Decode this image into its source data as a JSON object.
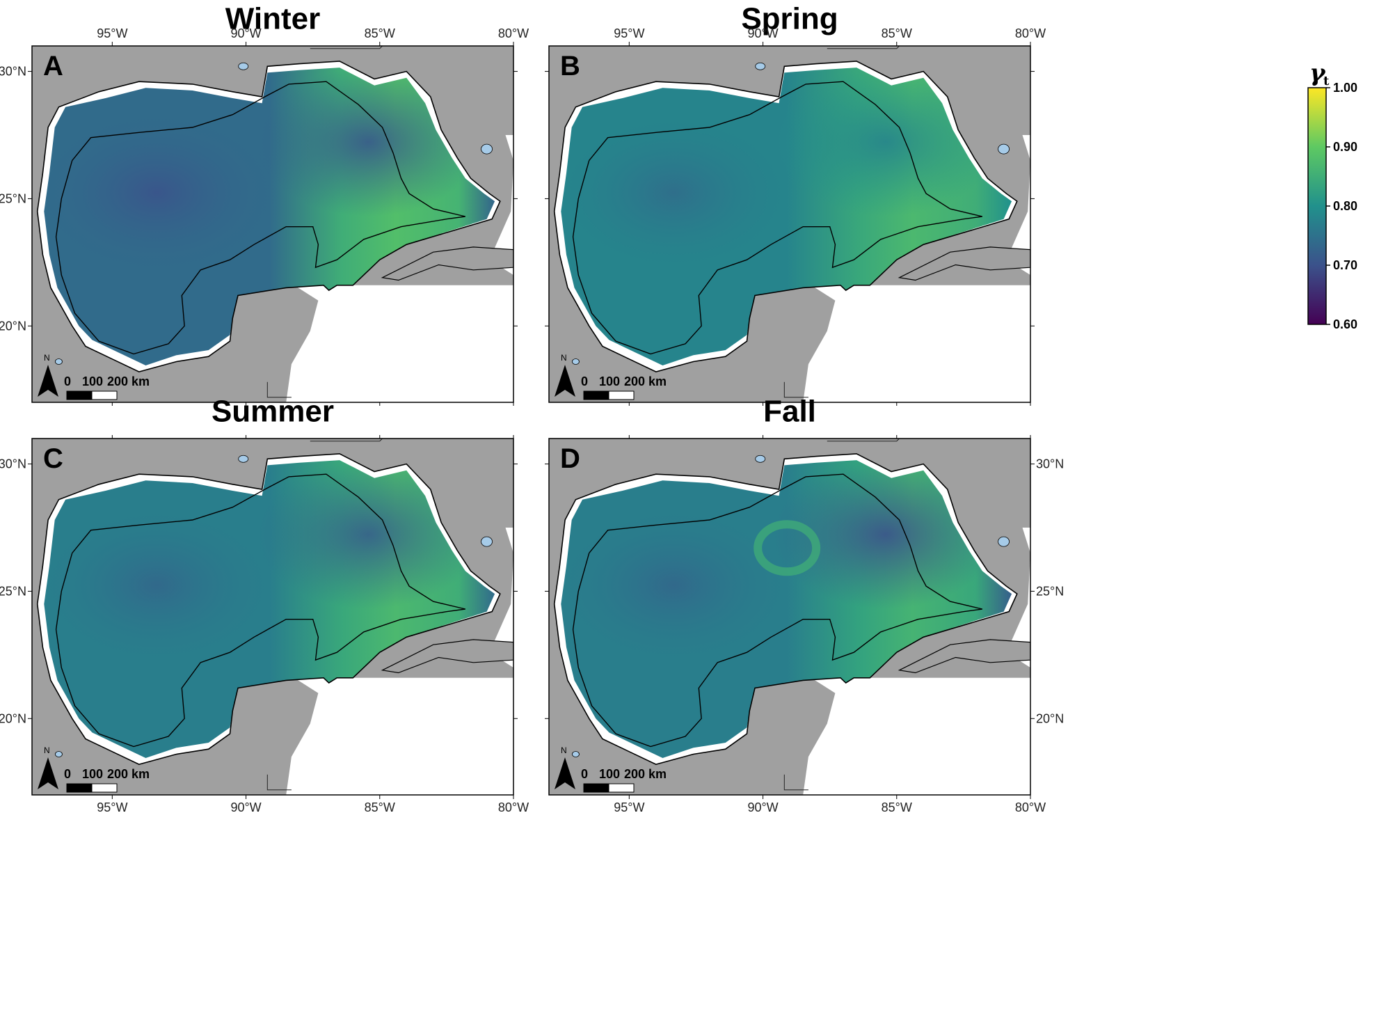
{
  "panels": [
    {
      "id": "A",
      "title": "Winter"
    },
    {
      "id": "B",
      "title": "Spring"
    },
    {
      "id": "C",
      "title": "Summer"
    },
    {
      "id": "D",
      "title": "Fall"
    }
  ],
  "axes": {
    "lon_ticks": [
      "95°W",
      "90°W",
      "85°W",
      "80°W"
    ],
    "lat_ticks": [
      "30°N",
      "25°N",
      "20°N"
    ]
  },
  "scale_bar": {
    "labels": [
      "0",
      "100",
      "200 km"
    ],
    "north": "N"
  },
  "colorbar": {
    "label_main": "γ",
    "label_sub": "t",
    "ticks": [
      "1.00",
      "0.90",
      "0.80",
      "0.70",
      "0.60"
    ],
    "range": [
      0.6,
      1.0
    ],
    "colormap": "viridis",
    "colors": [
      "#440154",
      "#3b528b",
      "#21918c",
      "#5ec962",
      "#fde725"
    ]
  },
  "colors": {
    "land": "#a0a0a0",
    "coast": "#000000",
    "water_features": "#a6cbe8",
    "nodata": "#ffffff"
  },
  "map_data": {
    "type": "gridded raster (seasonal γt over Gulf of Mexico)",
    "seasons": {
      "Winter": {
        "basin": 0.74,
        "shelf": 0.77,
        "loop_current": 0.88,
        "east_gulf": 0.73
      },
      "Spring": {
        "basin": 0.78,
        "shelf": 0.82,
        "loop_current": 0.87,
        "east_gulf": 0.8
      },
      "Summer": {
        "basin": 0.77,
        "shelf": 0.79,
        "loop_current": 0.87,
        "east_gulf": 0.74
      },
      "Fall": {
        "basin": 0.77,
        "shelf": 0.8,
        "loop_current": 0.86,
        "east_gulf": 0.72
      }
    }
  }
}
